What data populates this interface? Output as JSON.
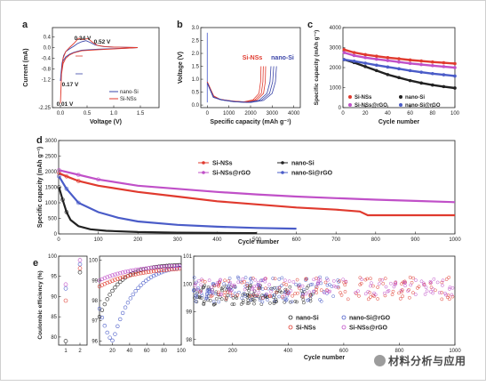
{
  "chart_data": [
    {
      "panel": "a",
      "type": "line",
      "xlabel": "Voltage (V)",
      "ylabel": "Current (mA)",
      "xlim": [
        0,
        2.0
      ],
      "ylim": [
        -2.25,
        0.75
      ],
      "xticks": [
        "0.0",
        "0.5",
        "1.0",
        "1.5"
      ],
      "yticks": [
        "0.4",
        "0.0",
        "-0.4",
        "-0.8",
        "-1.2",
        "-2.25"
      ],
      "legend": [
        "nano-Si",
        "Si-NSs"
      ],
      "legend_position": "bottom-right",
      "annotations": [
        "0.34 V",
        "0.52 V",
        "0.17 V",
        "0.01 V"
      ],
      "series": [
        {
          "name": "nano-Si",
          "color": "#3b45a8",
          "x": [
            0.0,
            0.01,
            0.03,
            0.06,
            0.1,
            0.17,
            0.25,
            0.32,
            0.4,
            0.48,
            0.55,
            0.65,
            0.8,
            1.0,
            1.2,
            1.45,
            1.3,
            1.0,
            0.7,
            0.4,
            0.25,
            0.17,
            0.1,
            0.05,
            0.02,
            0.0
          ],
          "y": [
            -1.25,
            -1.0,
            -0.6,
            -0.3,
            -0.15,
            -0.05,
            0.05,
            0.15,
            0.22,
            0.26,
            0.2,
            0.1,
            0.04,
            0.02,
            0.01,
            0.0,
            -0.02,
            -0.04,
            -0.06,
            -0.1,
            -0.18,
            -0.25,
            -0.35,
            -0.5,
            -0.8,
            -1.25
          ]
        },
        {
          "name": "Si-NSs",
          "color": "#e03a2e",
          "x": [
            0.0,
            0.01,
            0.02,
            0.05,
            0.1,
            0.17,
            0.25,
            0.34,
            0.42,
            0.52,
            0.6,
            0.7,
            0.85,
            1.0,
            1.2,
            1.45,
            1.3,
            1.0,
            0.7,
            0.4,
            0.25,
            0.17,
            0.1,
            0.05,
            0.02,
            0.0
          ],
          "y": [
            -2.1,
            -1.6,
            -1.0,
            -0.4,
            -0.15,
            0.0,
            0.15,
            0.35,
            0.3,
            0.34,
            0.2,
            0.08,
            0.03,
            0.02,
            0.01,
            0.0,
            -0.02,
            -0.05,
            -0.08,
            -0.12,
            -0.2,
            -0.28,
            -0.4,
            -0.6,
            -1.0,
            -2.1
          ]
        }
      ]
    },
    {
      "panel": "b",
      "type": "line",
      "xlabel": "Specific capacity (mAh g⁻¹)",
      "ylabel": "Voltage (V)",
      "xlim": [
        -300,
        4300
      ],
      "ylim": [
        -0.1,
        3.0
      ],
      "xticks": [
        "0",
        "1000",
        "2000",
        "3000",
        "4000"
      ],
      "yticks": [
        "0.0",
        "0.5",
        "1.0",
        "1.5",
        "2.0",
        "2.5",
        "3.0"
      ],
      "labels": [
        "Si-NSs",
        "nano-Si"
      ],
      "series": [
        {
          "name": "Si-NSs",
          "color": "#e03a2e",
          "x": [
            0,
            300,
            600,
            1200,
            1800,
            2300,
            2600,
            2680,
            2700
          ],
          "y": [
            0.9,
            0.35,
            0.22,
            0.15,
            0.12,
            0.2,
            0.45,
            0.9,
            1.5
          ]
        },
        {
          "name": "nano-Si",
          "color": "#3b45a8",
          "x": [
            0,
            300,
            700,
            1300,
            2000,
            2600,
            3000,
            3150,
            3200
          ],
          "y": [
            0.85,
            0.3,
            0.2,
            0.13,
            0.1,
            0.18,
            0.45,
            0.9,
            1.5
          ]
        }
      ]
    },
    {
      "panel": "c",
      "type": "scatter",
      "xlabel": "Cycle number",
      "ylabel": "Specific capacity (mAh g⁻¹)",
      "xlim": [
        0,
        100
      ],
      "ylim": [
        0,
        4000
      ],
      "xticks": [
        "0",
        "20",
        "40",
        "60",
        "80",
        "100"
      ],
      "yticks": [
        "0",
        "1000",
        "2000",
        "3000",
        "4000"
      ],
      "legend": [
        "Si-NSs",
        "nano-Si",
        "Si-NSs@rGO",
        "nano-Si@rGO"
      ],
      "series": [
        {
          "name": "Si-NSs",
          "color": "#e03a2e",
          "x": [
            1,
            10,
            20,
            30,
            40,
            50,
            60,
            70,
            80,
            90,
            100
          ],
          "y": [
            2900,
            2750,
            2650,
            2570,
            2500,
            2440,
            2380,
            2330,
            2280,
            2240,
            2200
          ]
        },
        {
          "name": "nano-Si",
          "color": "#222222",
          "x": [
            1,
            10,
            20,
            30,
            40,
            50,
            60,
            70,
            80,
            90,
            100
          ],
          "y": [
            2400,
            2250,
            2050,
            1850,
            1650,
            1500,
            1350,
            1230,
            1130,
            1050,
            980
          ]
        },
        {
          "name": "Si-NSs@rGO",
          "color": "#c050c8",
          "x": [
            1,
            10,
            20,
            30,
            40,
            50,
            60,
            70,
            80,
            90,
            100
          ],
          "y": [
            2750,
            2600,
            2500,
            2420,
            2350,
            2280,
            2210,
            2150,
            2100,
            2050,
            2000
          ]
        },
        {
          "name": "nano-Si@rGO",
          "color": "#4a5cc8",
          "x": [
            1,
            10,
            20,
            30,
            40,
            50,
            60,
            70,
            80,
            90,
            100
          ],
          "y": [
            2400,
            2320,
            2220,
            2120,
            2030,
            1940,
            1850,
            1770,
            1700,
            1640,
            1580
          ]
        }
      ]
    },
    {
      "panel": "d",
      "type": "scatter",
      "xlabel": "Cycle number",
      "ylabel": "Specific capacity (mAh g⁻¹)",
      "xlim": [
        0,
        1000
      ],
      "ylim": [
        0,
        3000
      ],
      "xticks": [
        "0",
        "100",
        "200",
        "300",
        "400",
        "500",
        "600",
        "700",
        "800",
        "900",
        "1000"
      ],
      "yticks": [
        "0",
        "500",
        "1000",
        "1500",
        "2000",
        "2500",
        "3000"
      ],
      "legend": [
        "Si-NSs",
        "nano-Si",
        "Si-NSs@rGO",
        "nano-Si@rGO"
      ],
      "legend_position": "top-center",
      "series": [
        {
          "name": "Si-NSs",
          "color": "#e03a2e",
          "x": [
            1,
            20,
            50,
            100,
            200,
            300,
            400,
            500,
            600,
            700,
            760,
            780,
            800,
            900,
            1000
          ],
          "y": [
            1950,
            1850,
            1700,
            1550,
            1350,
            1200,
            1050,
            950,
            850,
            780,
            720,
            600,
            600,
            600,
            600
          ]
        },
        {
          "name": "nano-Si",
          "color": "#222222",
          "x": [
            1,
            10,
            20,
            30,
            50,
            80,
            120,
            200,
            300,
            400,
            500
          ],
          "y": [
            1500,
            1100,
            700,
            450,
            250,
            150,
            100,
            60,
            40,
            30,
            25
          ]
        },
        {
          "name": "Si-NSs@rGO",
          "color": "#c050c8",
          "x": [
            1,
            50,
            100,
            200,
            300,
            400,
            500,
            600,
            700,
            800,
            900,
            1000
          ],
          "y": [
            2050,
            1900,
            1750,
            1550,
            1450,
            1350,
            1270,
            1200,
            1150,
            1100,
            1060,
            1020
          ]
        },
        {
          "name": "nano-Si@rGO",
          "color": "#4a5cc8",
          "x": [
            1,
            20,
            50,
            100,
            150,
            200,
            300,
            400,
            500,
            600
          ],
          "y": [
            1850,
            1450,
            1000,
            700,
            520,
            400,
            290,
            230,
            190,
            170
          ]
        }
      ]
    },
    {
      "panel": "e",
      "type": "scatter",
      "ylabel": "Coulombic efficiency (%)",
      "subpanels": [
        {
          "xlim": [
            0.5,
            2.5
          ],
          "ylim": [
            78,
            100
          ],
          "xticks": [
            "1",
            "2"
          ],
          "yticks": [
            "80",
            "85",
            "90",
            "95",
            "100"
          ]
        },
        {
          "xlim": [
            5,
            100
          ],
          "ylim": [
            95.8,
            100.2
          ],
          "xticks": [
            "20",
            "40",
            "60",
            "80",
            "100"
          ],
          "yticks": [
            "96",
            "97",
            "98",
            "99",
            "100"
          ]
        },
        {
          "xlim": [
            60,
            1000
          ],
          "ylim": [
            97.8,
            101
          ],
          "xticks": [
            "200",
            "400",
            "600",
            "800",
            "1000"
          ],
          "yticks": [
            "98",
            "99",
            "100",
            "101"
          ],
          "xlabel": "Cycle number"
        }
      ],
      "legend": [
        "nano-Si",
        "nano-Si@rGO",
        "Si-NSs",
        "Si-NSs@rGO"
      ],
      "series": [
        {
          "name": "nano-Si",
          "color": "#222222",
          "x1": [
            1,
            2
          ],
          "y1": [
            79,
            96
          ]
        },
        {
          "name": "nano-Si@rGO",
          "color": "#4a5cc8",
          "x1": [
            1,
            2
          ],
          "y1": [
            92,
            98
          ]
        },
        {
          "name": "Si-NSs",
          "color": "#e03a2e",
          "x1": [
            1,
            2
          ],
          "y1": [
            89,
            97
          ]
        },
        {
          "name": "Si-NSs@rGO",
          "color": "#c050c8",
          "x1": [
            1,
            2
          ],
          "y1": [
            93,
            99
          ]
        }
      ]
    }
  ],
  "watermark": "材料分析与应用"
}
